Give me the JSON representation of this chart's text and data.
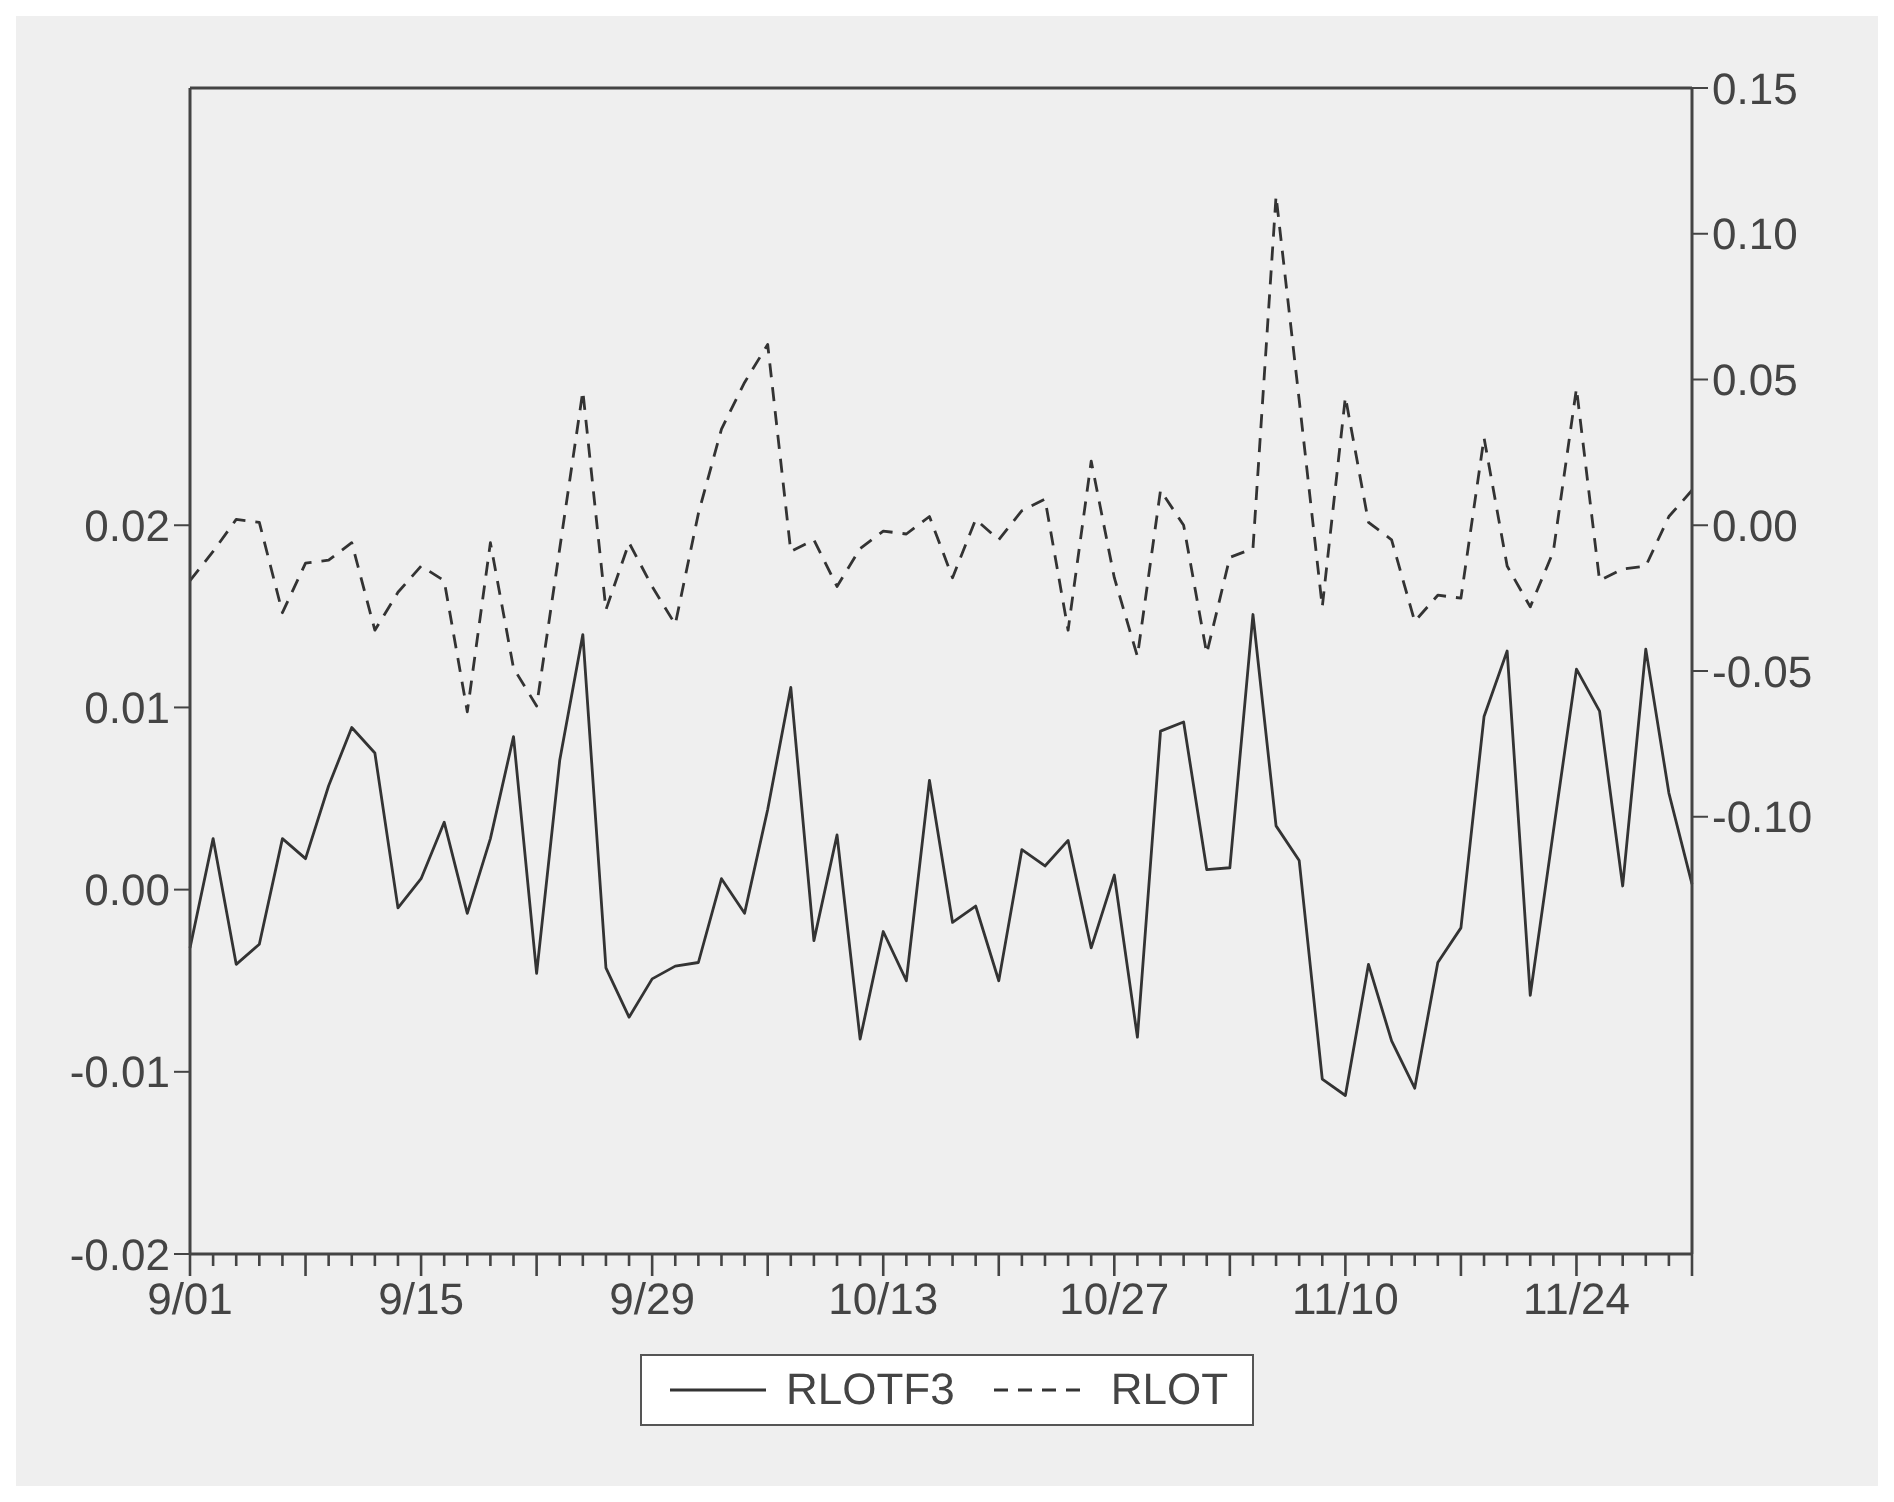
{
  "chart_data": {
    "type": "line",
    "categories": [
      "9/01",
      null,
      null,
      null,
      null,
      null,
      null,
      null,
      null,
      null,
      "9/15",
      null,
      null,
      null,
      null,
      null,
      null,
      null,
      null,
      null,
      "9/29",
      null,
      null,
      null,
      null,
      null,
      null,
      null,
      null,
      null,
      "10/13",
      null,
      null,
      null,
      null,
      null,
      null,
      null,
      null,
      null,
      "10/27",
      null,
      null,
      null,
      null,
      null,
      null,
      null,
      null,
      null,
      "11/10",
      null,
      null,
      null,
      null,
      null,
      null,
      null,
      null,
      null,
      "11/24",
      null,
      null,
      null,
      null,
      null
    ],
    "series": [
      {
        "name": "RLOTF3",
        "color": "#333333",
        "line_style": "solid",
        "values": [
          -0.0032,
          0.0028,
          -0.0041,
          -0.003,
          0.0028,
          0.0017,
          0.0057,
          0.0089,
          0.0075,
          -0.001,
          0.0006,
          0.0037,
          -0.0013,
          0.0028,
          0.0084,
          -0.0046,
          0.0071,
          0.014,
          -0.0043,
          -0.007,
          -0.0049,
          -0.0042,
          -0.004,
          0.0006,
          -0.0013,
          0.0044,
          0.0111,
          -0.0028,
          0.003,
          -0.0082,
          -0.0023,
          -0.005,
          0.006,
          -0.0018,
          -0.0009,
          -0.005,
          0.0022,
          0.0013,
          0.0027,
          -0.0032,
          0.0008,
          -0.0081,
          0.0087,
          0.0092,
          0.0011,
          0.0012,
          0.0151,
          0.0035,
          0.0016,
          -0.0104,
          -0.0113,
          -0.0041,
          -0.0083,
          -0.0109,
          -0.004,
          -0.0021,
          0.0095,
          0.0131,
          -0.0058,
          0.0032,
          0.0121,
          0.0098,
          0.0002,
          0.0132,
          0.0053,
          0.0003
        ]
      },
      {
        "name": "RLOT",
        "color": "#333333",
        "line_style": "dashed",
        "axis": "y2",
        "values": [
          -0.019,
          -0.009,
          0.002,
          0.001,
          -0.03,
          -0.013,
          -0.012,
          -0.006,
          -0.036,
          -0.023,
          -0.014,
          -0.019,
          -0.064,
          -0.006,
          -0.049,
          -0.062,
          -0.008,
          0.046,
          -0.029,
          -0.006,
          -0.021,
          -0.034,
          0.004,
          0.033,
          0.049,
          0.062,
          -0.009,
          -0.005,
          -0.021,
          -0.008,
          -0.002,
          -0.003,
          0.003,
          -0.018,
          0.002,
          -0.005,
          0.005,
          0.009,
          -0.036,
          0.022,
          -0.018,
          -0.045,
          0.012,
          0.0,
          -0.044,
          -0.011,
          -0.008,
          0.113,
          0.043,
          -0.028,
          0.044,
          0.001,
          -0.005,
          -0.033,
          -0.024,
          -0.025,
          0.03,
          -0.014,
          -0.028,
          -0.009,
          0.047,
          -0.019,
          -0.015,
          -0.014,
          0.003,
          0.012
        ]
      }
    ],
    "ylim": [
      -0.02,
      0.044
    ],
    "yticks": [
      {
        "value": -0.02,
        "label": "-0.02"
      },
      {
        "value": -0.01,
        "label": "-0.01"
      },
      {
        "value": 0,
        "label": "0.00"
      },
      {
        "value": 0.01,
        "label": "0.01"
      },
      {
        "value": 0.02,
        "label": "0.02"
      }
    ],
    "y2lim": [
      -0.25,
      0.15
    ],
    "y2ticks": [
      {
        "value": -0.1,
        "label": "-0.10"
      },
      {
        "value": -0.05,
        "label": "-0.05"
      },
      {
        "value": 0,
        "label": "0.00"
      },
      {
        "value": 0.05,
        "label": "0.05"
      },
      {
        "value": 0.1,
        "label": "0.10"
      },
      {
        "value": 0.15,
        "label": "0.15"
      }
    ],
    "grid": false,
    "marker": "none",
    "legend": "bottom"
  }
}
